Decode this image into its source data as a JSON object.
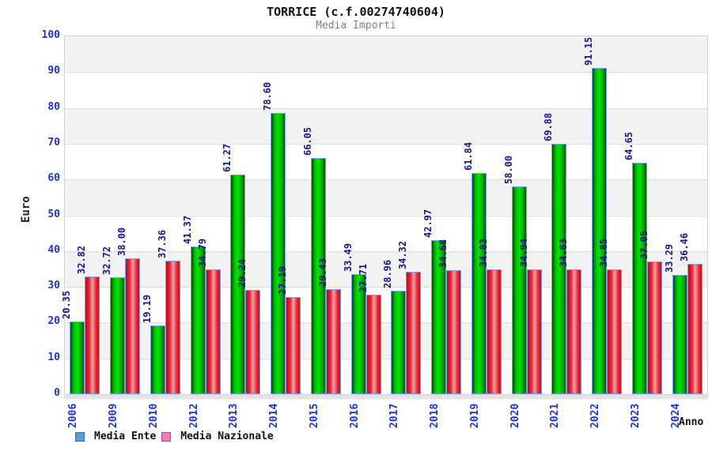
{
  "chart_data": {
    "type": "bar",
    "title": "TORRICE (c.f.00274740604)",
    "subtitle": "Media Importi",
    "xlabel": "Anno",
    "ylabel": "Euro",
    "ylim": [
      0,
      100
    ],
    "ytick_step": 10,
    "yticks": [
      0,
      10,
      20,
      30,
      40,
      50,
      60,
      70,
      80,
      90,
      100
    ],
    "grid": "alternating-horizontal-bands",
    "legend_position": "bottom-left",
    "value_label_decimals": 2,
    "categories": [
      "2006",
      "2009",
      "2010",
      "2012",
      "2013",
      "2014",
      "2015",
      "2016",
      "2017",
      "2018",
      "2019",
      "2020",
      "2021",
      "2022",
      "2023",
      "2024"
    ],
    "series": [
      {
        "name": "Media Ente",
        "values": [
          20.35,
          32.72,
          19.19,
          41.37,
          61.27,
          78.6,
          66.05,
          33.49,
          28.96,
          42.97,
          61.84,
          58.0,
          69.88,
          91.15,
          64.65,
          33.29
        ],
        "legend_color": "#5b9bd5",
        "legend_border": "#3a6ea5",
        "bar_gradient": [
          "#024d02",
          "#00c800",
          "#00e400",
          "#00a000",
          "#035303"
        ]
      },
      {
        "name": "Media Nazionale",
        "values": [
          32.82,
          38.0,
          37.36,
          34.79,
          29.24,
          27.19,
          29.43,
          27.71,
          34.32,
          34.68,
          34.83,
          34.94,
          34.83,
          34.85,
          37.05,
          36.46
        ],
        "legend_color": "#ef7bb8",
        "legend_border": "#b5487f",
        "bar_gradient": [
          "#a81222",
          "#ee2233",
          "#eaa4a4",
          "#ee2233",
          "#c01222"
        ]
      }
    ]
  },
  "colors": {
    "axis_tick_label": "#2233cc",
    "value_label": "#16168c",
    "bar_border": "#7b9ff2",
    "band_gray": "#f2f2f2",
    "band_white": "#ffffff",
    "grid_line": "#dcdcdc",
    "subtitle_gray": "#808080",
    "plot_border": "#d4d4d4"
  }
}
